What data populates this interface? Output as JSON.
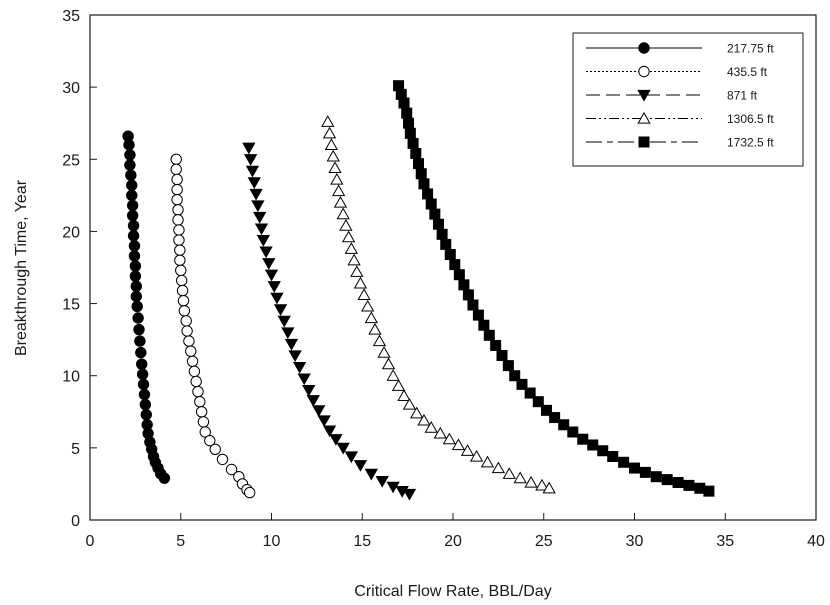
{
  "chart_data": {
    "type": "scatter",
    "xlabel": "Critical Flow Rate, BBL/Day",
    "ylabel": "Breakthrough Time, Year",
    "xlim": [
      0,
      40
    ],
    "ylim": [
      0,
      35
    ],
    "x_ticks": [
      "0",
      "5",
      "10",
      "15",
      "20",
      "25",
      "30",
      "35",
      "40"
    ],
    "y_ticks": [
      "0",
      "5",
      "10",
      "15",
      "20",
      "25",
      "30",
      "35"
    ],
    "grid": false,
    "legend_position": "top-right",
    "series": [
      {
        "name": "217.75 ft",
        "marker": "filled-circle",
        "line_style": "solid",
        "points": [
          [
            2.1,
            26.6
          ],
          [
            2.15,
            26.0
          ],
          [
            2.2,
            25.3
          ],
          [
            2.2,
            24.6
          ],
          [
            2.25,
            23.9
          ],
          [
            2.3,
            23.2
          ],
          [
            2.3,
            22.5
          ],
          [
            2.35,
            21.8
          ],
          [
            2.35,
            21.1
          ],
          [
            2.4,
            20.4
          ],
          [
            2.4,
            19.7
          ],
          [
            2.45,
            19.0
          ],
          [
            2.45,
            18.3
          ],
          [
            2.5,
            17.6
          ],
          [
            2.5,
            16.9
          ],
          [
            2.55,
            16.2
          ],
          [
            2.55,
            15.5
          ],
          [
            2.6,
            14.8
          ],
          [
            2.65,
            14.0
          ],
          [
            2.7,
            13.2
          ],
          [
            2.75,
            12.4
          ],
          [
            2.8,
            11.6
          ],
          [
            2.85,
            10.8
          ],
          [
            2.9,
            10.1
          ],
          [
            2.95,
            9.4
          ],
          [
            3.0,
            8.7
          ],
          [
            3.05,
            8.0
          ],
          [
            3.1,
            7.3
          ],
          [
            3.15,
            6.6
          ],
          [
            3.2,
            6.0
          ],
          [
            3.3,
            5.4
          ],
          [
            3.4,
            4.9
          ],
          [
            3.5,
            4.4
          ],
          [
            3.6,
            4.0
          ],
          [
            3.75,
            3.6
          ],
          [
            3.9,
            3.2
          ],
          [
            4.1,
            2.9
          ]
        ]
      },
      {
        "name": "435.5 ft",
        "marker": "open-circle",
        "line_style": "dotted",
        "points": [
          [
            4.75,
            25.0
          ],
          [
            4.75,
            24.3
          ],
          [
            4.8,
            23.6
          ],
          [
            4.8,
            22.9
          ],
          [
            4.8,
            22.2
          ],
          [
            4.85,
            21.5
          ],
          [
            4.85,
            20.8
          ],
          [
            4.9,
            20.1
          ],
          [
            4.9,
            19.4
          ],
          [
            4.95,
            18.7
          ],
          [
            4.95,
            18.0
          ],
          [
            5.0,
            17.3
          ],
          [
            5.05,
            16.6
          ],
          [
            5.1,
            15.9
          ],
          [
            5.15,
            15.2
          ],
          [
            5.2,
            14.5
          ],
          [
            5.3,
            13.8
          ],
          [
            5.35,
            13.1
          ],
          [
            5.45,
            12.4
          ],
          [
            5.55,
            11.7
          ],
          [
            5.65,
            11.0
          ],
          [
            5.75,
            10.3
          ],
          [
            5.85,
            9.6
          ],
          [
            5.95,
            8.9
          ],
          [
            6.05,
            8.2
          ],
          [
            6.15,
            7.5
          ],
          [
            6.25,
            6.8
          ],
          [
            6.35,
            6.1
          ],
          [
            6.6,
            5.5
          ],
          [
            6.9,
            4.9
          ],
          [
            7.3,
            4.2
          ],
          [
            7.8,
            3.5
          ],
          [
            8.2,
            3.0
          ],
          [
            8.4,
            2.5
          ],
          [
            8.65,
            2.1
          ],
          [
            8.8,
            1.9
          ]
        ]
      },
      {
        "name": "871 ft",
        "marker": "filled-triangle-down",
        "line_style": "long-dash",
        "points": [
          [
            8.75,
            25.8
          ],
          [
            8.85,
            25.0
          ],
          [
            8.95,
            24.2
          ],
          [
            9.05,
            23.4
          ],
          [
            9.15,
            22.6
          ],
          [
            9.25,
            21.8
          ],
          [
            9.35,
            21.0
          ],
          [
            9.45,
            20.2
          ],
          [
            9.55,
            19.4
          ],
          [
            9.7,
            18.6
          ],
          [
            9.85,
            17.8
          ],
          [
            10.0,
            17.0
          ],
          [
            10.15,
            16.2
          ],
          [
            10.3,
            15.4
          ],
          [
            10.5,
            14.6
          ],
          [
            10.7,
            13.8
          ],
          [
            10.9,
            13.0
          ],
          [
            11.1,
            12.2
          ],
          [
            11.3,
            11.4
          ],
          [
            11.55,
            10.6
          ],
          [
            11.8,
            9.8
          ],
          [
            12.05,
            9.0
          ],
          [
            12.3,
            8.3
          ],
          [
            12.6,
            7.6
          ],
          [
            12.9,
            6.9
          ],
          [
            13.2,
            6.2
          ],
          [
            13.55,
            5.6
          ],
          [
            13.95,
            5.0
          ],
          [
            14.4,
            4.4
          ],
          [
            14.9,
            3.8
          ],
          [
            15.5,
            3.2
          ],
          [
            16.1,
            2.7
          ],
          [
            16.7,
            2.3
          ],
          [
            17.2,
            2.0
          ],
          [
            17.6,
            1.8
          ]
        ]
      },
      {
        "name": "1306.5 ft",
        "marker": "open-triangle-up",
        "line_style": "dash-dot-dot",
        "points": [
          [
            13.1,
            27.6
          ],
          [
            13.2,
            26.8
          ],
          [
            13.3,
            26.0
          ],
          [
            13.4,
            25.2
          ],
          [
            13.5,
            24.4
          ],
          [
            13.6,
            23.6
          ],
          [
            13.7,
            22.8
          ],
          [
            13.8,
            22.0
          ],
          [
            13.95,
            21.2
          ],
          [
            14.1,
            20.4
          ],
          [
            14.25,
            19.6
          ],
          [
            14.4,
            18.8
          ],
          [
            14.55,
            18.0
          ],
          [
            14.7,
            17.2
          ],
          [
            14.9,
            16.4
          ],
          [
            15.1,
            15.6
          ],
          [
            15.3,
            14.8
          ],
          [
            15.5,
            14.0
          ],
          [
            15.7,
            13.2
          ],
          [
            15.95,
            12.4
          ],
          [
            16.2,
            11.6
          ],
          [
            16.45,
            10.8
          ],
          [
            16.7,
            10.0
          ],
          [
            17.0,
            9.3
          ],
          [
            17.3,
            8.6
          ],
          [
            17.6,
            8.0
          ],
          [
            18.0,
            7.4
          ],
          [
            18.4,
            6.9
          ],
          [
            18.8,
            6.4
          ],
          [
            19.3,
            6.0
          ],
          [
            19.8,
            5.6
          ],
          [
            20.3,
            5.2
          ],
          [
            20.8,
            4.8
          ],
          [
            21.3,
            4.4
          ],
          [
            21.9,
            4.0
          ],
          [
            22.5,
            3.6
          ],
          [
            23.1,
            3.2
          ],
          [
            23.7,
            2.9
          ],
          [
            24.3,
            2.6
          ],
          [
            24.9,
            2.4
          ],
          [
            25.3,
            2.2
          ]
        ]
      },
      {
        "name": "1732.5 ft",
        "marker": "filled-square",
        "line_style": "long-dash-short-dash",
        "points": [
          [
            17.0,
            30.1
          ],
          [
            17.15,
            29.5
          ],
          [
            17.3,
            28.9
          ],
          [
            17.45,
            28.2
          ],
          [
            17.55,
            27.5
          ],
          [
            17.65,
            26.8
          ],
          [
            17.8,
            26.1
          ],
          [
            17.95,
            25.4
          ],
          [
            18.1,
            24.7
          ],
          [
            18.25,
            24.0
          ],
          [
            18.4,
            23.3
          ],
          [
            18.6,
            22.6
          ],
          [
            18.8,
            21.9
          ],
          [
            19.0,
            21.2
          ],
          [
            19.2,
            20.5
          ],
          [
            19.4,
            19.8
          ],
          [
            19.6,
            19.1
          ],
          [
            19.85,
            18.4
          ],
          [
            20.1,
            17.7
          ],
          [
            20.35,
            17.0
          ],
          [
            20.6,
            16.3
          ],
          [
            20.85,
            15.6
          ],
          [
            21.1,
            14.9
          ],
          [
            21.4,
            14.2
          ],
          [
            21.7,
            13.5
          ],
          [
            22.0,
            12.8
          ],
          [
            22.35,
            12.1
          ],
          [
            22.7,
            11.4
          ],
          [
            23.05,
            10.7
          ],
          [
            23.4,
            10.0
          ],
          [
            23.8,
            9.4
          ],
          [
            24.25,
            8.8
          ],
          [
            24.7,
            8.2
          ],
          [
            25.15,
            7.6
          ],
          [
            25.6,
            7.1
          ],
          [
            26.1,
            6.6
          ],
          [
            26.6,
            6.1
          ],
          [
            27.15,
            5.6
          ],
          [
            27.7,
            5.2
          ],
          [
            28.25,
            4.8
          ],
          [
            28.8,
            4.4
          ],
          [
            29.4,
            4.0
          ],
          [
            30.0,
            3.6
          ],
          [
            30.6,
            3.3
          ],
          [
            31.2,
            3.0
          ],
          [
            31.8,
            2.8
          ],
          [
            32.4,
            2.6
          ],
          [
            33.0,
            2.4
          ],
          [
            33.6,
            2.2
          ],
          [
            34.1,
            2.0
          ]
        ]
      }
    ]
  }
}
